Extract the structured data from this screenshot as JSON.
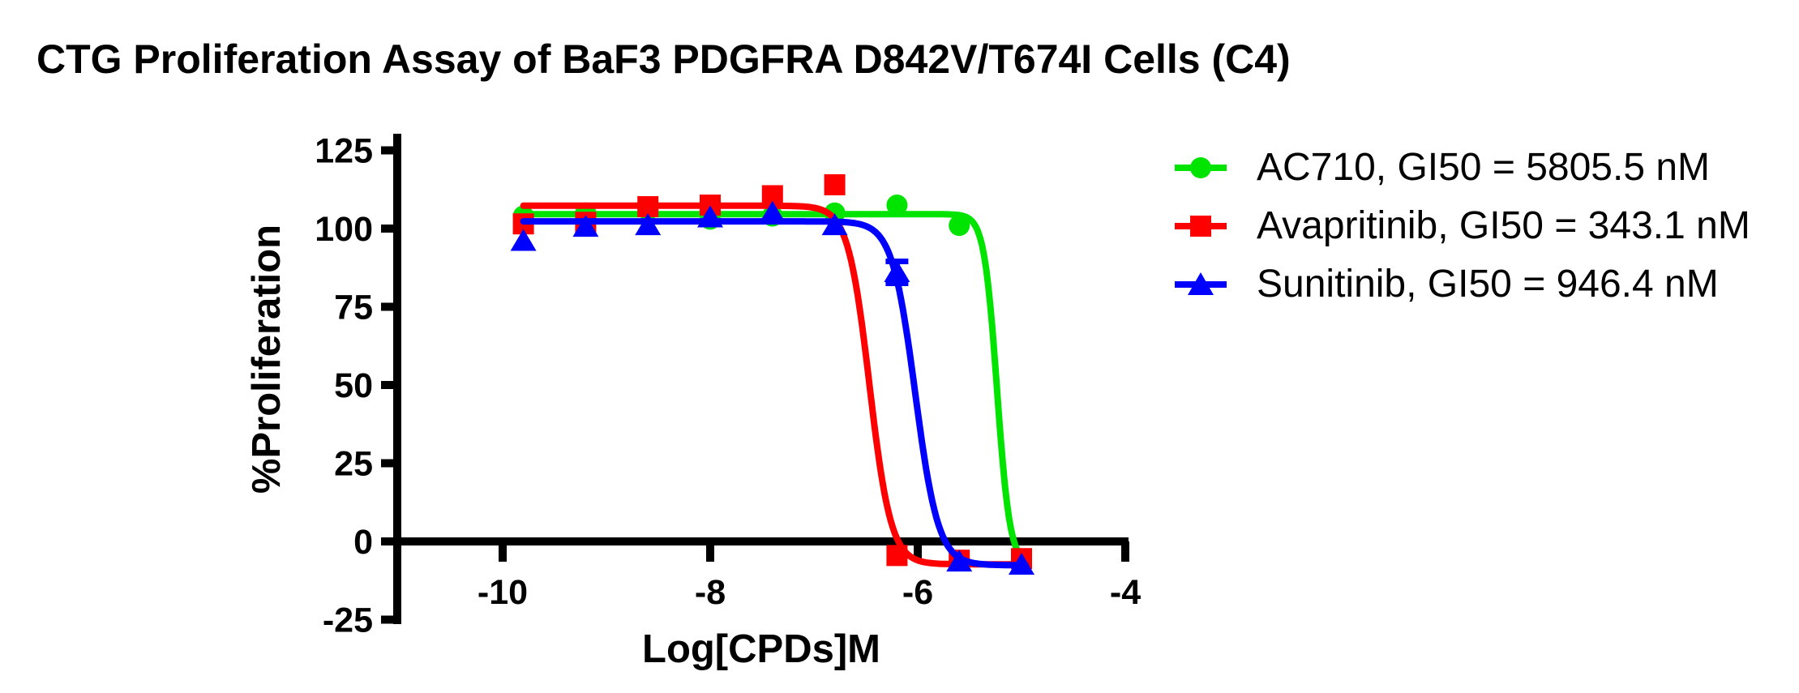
{
  "title": "CTG Proliferation Assay of BaF3 PDGFRA D842V/T674I Cells (C4)",
  "chart_data": {
    "type": "line",
    "title": "CTG Proliferation Assay of BaF3 PDGFRA D842V/T674I Cells (C4)",
    "xlabel": "Log[CPDs]M",
    "ylabel": "%Proliferation",
    "x_ticks": [
      -10,
      -8,
      -6,
      -4
    ],
    "y_ticks": [
      125,
      100,
      75,
      50,
      25,
      0,
      -25
    ],
    "x_axis_range_log10_M": [
      -11,
      -4
    ],
    "y_axis_range_percent": [
      -25,
      125
    ],
    "grid": false,
    "legend_position": "right",
    "x_log10_M": [
      -9.8,
      -9.2,
      -8.6,
      -8.0,
      -7.4,
      -6.8,
      -6.2,
      -5.6,
      -5.0
    ],
    "series": [
      {
        "name": "AC710",
        "legend_label": "AC710, GI50 = 5805.5 nM",
        "gi50_nM": 5805.5,
        "color": "#00E400",
        "marker": "circle",
        "values": [
          104,
          105,
          106,
          103,
          104,
          105,
          107.5,
          101,
          -7
        ],
        "errors": [
          0,
          0,
          0,
          0,
          0,
          0,
          0,
          0,
          0
        ],
        "fit": {
          "top": 104.6,
          "bottom": -7.5,
          "log_gi50": -5.236,
          "hill": 7
        }
      },
      {
        "name": "Avapritinib",
        "legend_label": "Avapritinib, GI50 = 343.1 nM",
        "gi50_nM": 343.1,
        "color": "#FF0000",
        "marker": "square",
        "values": [
          101.5,
          102,
          107,
          107.5,
          110.5,
          114,
          -4.5,
          -6,
          -5.5
        ],
        "errors": [
          0,
          0,
          0,
          0,
          0,
          0,
          0,
          0,
          0
        ],
        "fit": {
          "top": 107.3,
          "bottom": -7.3,
          "log_gi50": -6.465,
          "hill": 4.2
        }
      },
      {
        "name": "Sunitinib",
        "legend_label": "Sunitinib, GI50 = 946.4 nM",
        "gi50_nM": 946.4,
        "color": "#0000FF",
        "marker": "triangle",
        "values": [
          96,
          100.5,
          101,
          103.5,
          105,
          101,
          86,
          -6.5,
          -7.5
        ],
        "errors": [
          0,
          0,
          0,
          0,
          0,
          0,
          3.5,
          0,
          0
        ],
        "fit": {
          "top": 102.3,
          "bottom": -7.6,
          "log_gi50": -6.024,
          "hill": 3.9
        }
      }
    ]
  }
}
